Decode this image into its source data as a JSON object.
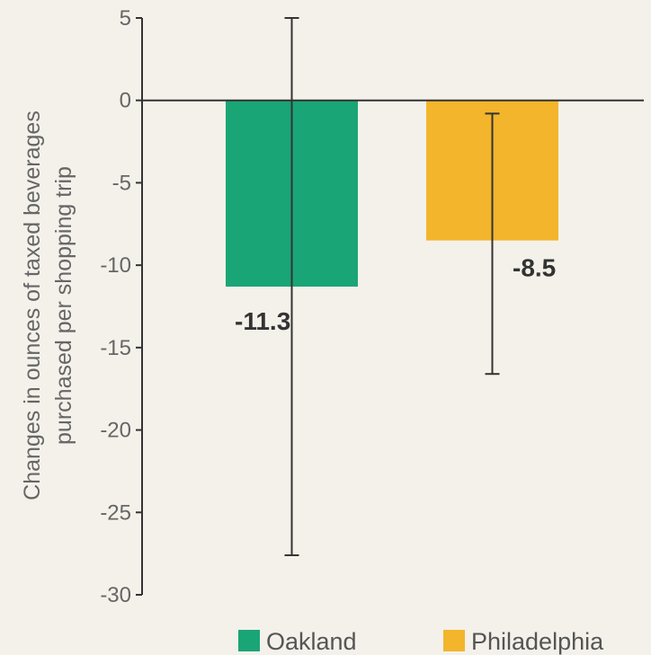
{
  "chart_data": {
    "type": "bar",
    "ylabel_lines": [
      "Changes in ounces of taxed beverages",
      "purchased per shopping trip"
    ],
    "ylim": [
      -30,
      5
    ],
    "yticks": [
      5,
      0,
      -5,
      -10,
      -15,
      -20,
      -25,
      -30
    ],
    "grid": false,
    "legend_position": "bottom-right",
    "series": [
      {
        "name": "Oakland",
        "value": -11.3,
        "value_label": "-11.3",
        "error_low": -27.6,
        "error_high": 5.0,
        "color": "#1aa577"
      },
      {
        "name": "Philadelphia",
        "value": -8.5,
        "value_label": "-8.5",
        "error_low": -16.6,
        "error_high": -0.8,
        "color": "#f2b52b"
      }
    ]
  }
}
